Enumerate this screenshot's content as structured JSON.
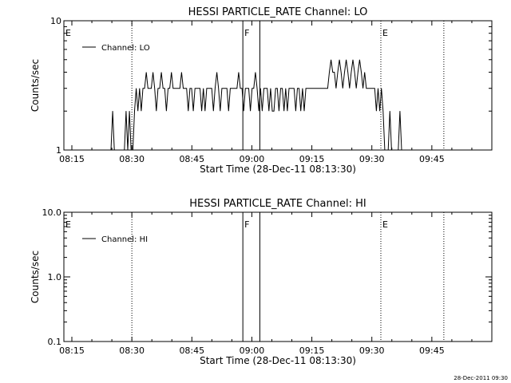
{
  "footer": {
    "timestamp": "28-Dec-2011 09:30"
  },
  "chart_data": [
    {
      "type": "line",
      "title": "HESSI PARTICLE_RATE Channel: LO",
      "xlabel": "Start Time (28-Dec-11 08:13:30)",
      "ylabel": "Counts/sec",
      "yscale": "log",
      "xlim": [
        8.2167,
        10.0
      ],
      "ylim": [
        1,
        10
      ],
      "x_ticks": [
        {
          "v": 8.25,
          "label": "08:15"
        },
        {
          "v": 8.5,
          "label": "08:30"
        },
        {
          "v": 8.75,
          "label": "08:45"
        },
        {
          "v": 9.0,
          "label": "09:00"
        },
        {
          "v": 9.25,
          "label": "09:15"
        },
        {
          "v": 9.5,
          "label": "09:30"
        },
        {
          "v": 9.75,
          "label": "09:45"
        }
      ],
      "y_ticks": [
        {
          "v": 1,
          "label": "1"
        },
        {
          "v": 10,
          "label": "10"
        }
      ],
      "legend": {
        "position": "top-left",
        "label": "Channel: LO"
      },
      "markers": [
        {
          "x": 8.2167,
          "style": "dotted",
          "label": "E"
        },
        {
          "x": 8.5,
          "style": "dotted",
          "label": ""
        },
        {
          "x": 8.9625,
          "style": "solid",
          "label": "F"
        },
        {
          "x": 9.0333,
          "style": "solid",
          "label": ""
        },
        {
          "x": 9.5375,
          "style": "dotted",
          "label": "E"
        },
        {
          "x": 9.8,
          "style": "dotted",
          "label": ""
        }
      ],
      "series": [
        {
          "name": "Channel: LO",
          "x": [
            8.413,
            8.42,
            8.427,
            8.434,
            8.441,
            8.448,
            8.455,
            8.462,
            8.469,
            8.476,
            8.483,
            8.49,
            8.497,
            8.504,
            8.511,
            8.518,
            8.525,
            8.532,
            8.539,
            8.546,
            8.553,
            8.56,
            8.567,
            8.574,
            8.581,
            8.588,
            8.595,
            8.602,
            8.609,
            8.616,
            8.623,
            8.63,
            8.637,
            8.644,
            8.651,
            8.658,
            8.665,
            8.672,
            8.679,
            8.686,
            8.693,
            8.7,
            8.707,
            8.714,
            8.721,
            8.728,
            8.735,
            8.742,
            8.749,
            8.756,
            8.763,
            8.77,
            8.777,
            8.784,
            8.791,
            8.798,
            8.805,
            8.812,
            8.819,
            8.826,
            8.833,
            8.84,
            8.847,
            8.854,
            8.861,
            8.868,
            8.875,
            8.882,
            8.889,
            8.896,
            8.903,
            8.91,
            8.917,
            8.924,
            8.931,
            8.938,
            8.945,
            8.952,
            8.959,
            8.966,
            8.973,
            8.98,
            8.987,
            8.994,
            9.001,
            9.008,
            9.015,
            9.022,
            9.029,
            9.036,
            9.043,
            9.05,
            9.057,
            9.064,
            9.071,
            9.078,
            9.085,
            9.092,
            9.099,
            9.106,
            9.113,
            9.12,
            9.127,
            9.134,
            9.141,
            9.148,
            9.155,
            9.162,
            9.169,
            9.176,
            9.183,
            9.19,
            9.197,
            9.204,
            9.211,
            9.218,
            9.225,
            9.232,
            9.239,
            9.246,
            9.253,
            9.26,
            9.267,
            9.274,
            9.281,
            9.288,
            9.295,
            9.302,
            9.309,
            9.316,
            9.323,
            9.33,
            9.337,
            9.344,
            9.351,
            9.358,
            9.365,
            9.372,
            9.379,
            9.386,
            9.393,
            9.4,
            9.407,
            9.414,
            9.421,
            9.428,
            9.435,
            9.442,
            9.449,
            9.456,
            9.463,
            9.47,
            9.477,
            9.484,
            9.491,
            9.498,
            9.505,
            9.512,
            9.519,
            9.526,
            9.533,
            9.54,
            9.547,
            9.554,
            9.561,
            9.568,
            9.575,
            9.582,
            9.589,
            9.596,
            9.603,
            9.61,
            9.617,
            9.624,
            9.631,
            9.638,
            9.645,
            9.652,
            9.659,
            9.666
          ],
          "y": [
            1,
            2,
            1,
            1,
            1,
            1,
            1,
            1,
            1,
            2,
            1,
            2,
            1,
            1,
            2,
            3,
            2,
            3,
            2,
            3,
            3,
            4,
            3,
            3,
            3,
            4,
            3,
            2,
            3,
            3,
            4,
            3,
            3,
            2,
            3,
            3,
            4,
            3,
            3,
            3,
            3,
            3,
            4,
            3,
            3,
            3,
            2,
            3,
            3,
            2,
            3,
            3,
            3,
            3,
            2,
            3,
            2,
            3,
            3,
            3,
            3,
            2,
            3,
            4,
            3,
            2,
            3,
            3,
            3,
            3,
            2,
            3,
            3,
            3,
            3,
            3,
            4,
            3,
            3,
            2,
            3,
            3,
            3,
            2,
            3,
            3,
            4,
            3,
            2,
            3,
            2,
            3,
            3,
            3,
            2,
            3,
            2,
            2,
            3,
            3,
            2,
            3,
            3,
            2,
            3,
            2,
            3,
            3,
            3,
            3,
            2,
            3,
            3,
            2,
            3,
            2,
            3,
            3,
            3,
            3,
            3,
            3,
            3,
            3,
            3,
            3,
            3,
            3,
            3,
            3,
            4,
            5,
            4,
            4,
            3,
            4,
            5,
            4,
            3,
            4,
            5,
            4,
            3,
            4,
            5,
            4,
            3,
            4,
            5,
            4,
            3,
            4,
            3,
            3,
            3,
            3,
            3,
            3,
            2,
            3,
            2,
            3,
            2,
            1,
            1,
            1,
            2,
            1,
            1,
            1,
            1,
            1,
            2,
            1,
            1,
            1,
            1,
            1,
            1,
            1
          ],
          "color": "#000000"
        }
      ]
    },
    {
      "type": "line",
      "title": "HESSI PARTICLE_RATE Channel: HI",
      "xlabel": "Start Time (28-Dec-11 08:13:30)",
      "ylabel": "Counts/sec",
      "yscale": "log",
      "xlim": [
        8.2167,
        10.0
      ],
      "ylim": [
        0.1,
        10
      ],
      "x_ticks": [
        {
          "v": 8.25,
          "label": "08:15"
        },
        {
          "v": 8.5,
          "label": "08:30"
        },
        {
          "v": 8.75,
          "label": "08:45"
        },
        {
          "v": 9.0,
          "label": "09:00"
        },
        {
          "v": 9.25,
          "label": "09:15"
        },
        {
          "v": 9.5,
          "label": "09:30"
        },
        {
          "v": 9.75,
          "label": "09:45"
        }
      ],
      "y_ticks": [
        {
          "v": 0.1,
          "label": "0.1"
        },
        {
          "v": 1,
          "label": "1.0"
        },
        {
          "v": 10,
          "label": "10.0"
        }
      ],
      "legend": {
        "position": "top-left",
        "label": "Channel: HI"
      },
      "markers": [
        {
          "x": 8.2167,
          "style": "dotted",
          "label": "E"
        },
        {
          "x": 8.5,
          "style": "dotted",
          "label": ""
        },
        {
          "x": 8.9625,
          "style": "solid",
          "label": "F"
        },
        {
          "x": 9.0333,
          "style": "solid",
          "label": ""
        },
        {
          "x": 9.5375,
          "style": "dotted",
          "label": "E"
        },
        {
          "x": 9.8,
          "style": "dotted",
          "label": ""
        }
      ],
      "series": [
        {
          "name": "Channel: HI",
          "x": [],
          "y": [],
          "color": "#000000"
        }
      ]
    }
  ]
}
